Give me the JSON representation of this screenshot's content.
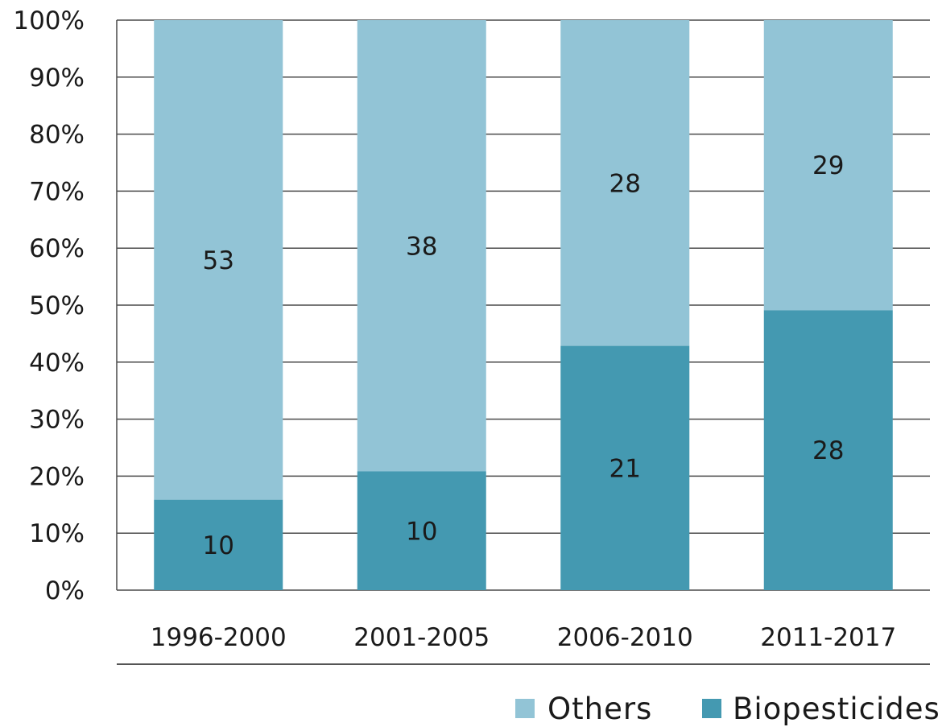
{
  "chart_data": {
    "type": "bar",
    "stacked": true,
    "normalized_percent": true,
    "categories": [
      "1996-2000",
      "2001-2005",
      "2006-2010",
      "2011-2017"
    ],
    "series": [
      {
        "name": "Biopesticides",
        "values": [
          10,
          10,
          21,
          28
        ],
        "color": "#4499b1"
      },
      {
        "name": "Others",
        "values": [
          53,
          38,
          28,
          29
        ],
        "color": "#92c4d6"
      }
    ],
    "y_ticks": [
      "0%",
      "10%",
      "20%",
      "30%",
      "40%",
      "50%",
      "60%",
      "70%",
      "80%",
      "90%",
      "100%"
    ],
    "ylim": [
      0,
      100
    ],
    "grid": true,
    "legend": {
      "position": "bottom-right",
      "order": [
        "Others",
        "Biopesticides"
      ]
    }
  }
}
